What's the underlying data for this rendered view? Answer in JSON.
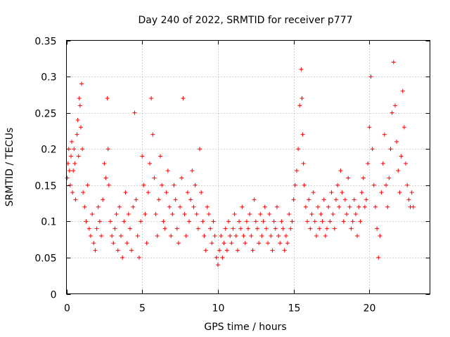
{
  "chart_data": {
    "type": "scatter",
    "title": "Day 240 of 2022, SRMTID for receiver p777",
    "xlabel": "GPS time / hours",
    "ylabel": "SRMTID / TECUs",
    "xlim": [
      0,
      24
    ],
    "ylim": [
      0,
      0.35
    ],
    "xticks": [
      0,
      5,
      10,
      15,
      20
    ],
    "xtick_labels": [
      "0",
      "5",
      "10",
      "15",
      "20"
    ],
    "yticks": [
      0,
      0.05,
      0.1,
      0.15,
      0.2,
      0.25,
      0.3,
      0.35
    ],
    "ytick_labels": [
      "0",
      "0.05",
      "0.1",
      "0.15",
      "0.2",
      "0.25",
      "0.3",
      "0.35"
    ],
    "grid": true,
    "marker": "plus",
    "color": "#ff0000",
    "series": [
      {
        "name": "SRMTID",
        "x": [
          0.05,
          0.1,
          0.15,
          0.2,
          0.25,
          0.3,
          0.35,
          0.4,
          0.45,
          0.5,
          0.55,
          0.6,
          0.7,
          0.75,
          0.8,
          0.85,
          0.9,
          0.95,
          1.0,
          1.05,
          1.1,
          1.2,
          1.3,
          1.4,
          1.5,
          1.6,
          1.7,
          1.8,
          1.9,
          2.0,
          2.1,
          2.2,
          2.3,
          2.4,
          2.5,
          2.6,
          2.7,
          2.75,
          2.8,
          2.9,
          3.0,
          3.1,
          3.2,
          3.3,
          3.4,
          3.5,
          3.6,
          3.7,
          3.8,
          3.9,
          4.0,
          4.1,
          4.2,
          4.3,
          4.4,
          4.5,
          4.6,
          4.7,
          4.8,
          4.9,
          5.0,
          5.1,
          5.2,
          5.3,
          5.4,
          5.5,
          5.6,
          5.7,
          5.8,
          5.9,
          6.0,
          6.1,
          6.2,
          6.3,
          6.4,
          6.5,
          6.6,
          6.7,
          6.8,
          6.9,
          7.0,
          7.1,
          7.2,
          7.3,
          7.4,
          7.5,
          7.6,
          7.7,
          7.8,
          7.9,
          8.0,
          8.1,
          8.2,
          8.3,
          8.4,
          8.5,
          8.6,
          8.7,
          8.8,
          8.9,
          9.0,
          9.1,
          9.2,
          9.3,
          9.4,
          9.5,
          9.6,
          9.7,
          9.8,
          9.9,
          10.0,
          10.1,
          10.2,
          10.3,
          10.4,
          10.5,
          10.6,
          10.7,
          10.8,
          10.9,
          11.0,
          11.1,
          11.2,
          11.3,
          11.4,
          11.5,
          11.6,
          11.7,
          11.8,
          11.9,
          12.0,
          12.1,
          12.2,
          12.3,
          12.4,
          12.5,
          12.6,
          12.7,
          12.8,
          12.9,
          13.0,
          13.1,
          13.2,
          13.3,
          13.4,
          13.5,
          13.6,
          13.7,
          13.8,
          13.9,
          14.0,
          14.1,
          14.2,
          14.3,
          14.4,
          14.5,
          14.6,
          14.7,
          14.8,
          14.9,
          15.0,
          15.1,
          15.2,
          15.3,
          15.4,
          15.5,
          15.55,
          15.6,
          15.65,
          15.7,
          15.8,
          15.9,
          16.0,
          16.1,
          16.2,
          16.3,
          16.4,
          16.5,
          16.6,
          16.7,
          16.8,
          16.9,
          17.0,
          17.1,
          17.2,
          17.3,
          17.4,
          17.5,
          17.6,
          17.7,
          17.8,
          17.9,
          18.0,
          18.1,
          18.2,
          18.3,
          18.4,
          18.5,
          18.6,
          18.7,
          18.8,
          18.9,
          19.0,
          19.1,
          19.2,
          19.3,
          19.4,
          19.5,
          19.6,
          19.7,
          19.8,
          19.9,
          20.0,
          20.1,
          20.2,
          20.3,
          20.4,
          20.5,
          20.6,
          20.7,
          20.8,
          20.9,
          21.0,
          21.1,
          21.2,
          21.3,
          21.4,
          21.5,
          21.6,
          21.7,
          21.8,
          21.9,
          22.0,
          22.1,
          22.2,
          22.3,
          22.4,
          22.5,
          22.6,
          22.7,
          22.8,
          22.9
        ],
        "y": [
          0.16,
          0.18,
          0.2,
          0.17,
          0.15,
          0.19,
          0.21,
          0.14,
          0.17,
          0.2,
          0.18,
          0.13,
          0.22,
          0.24,
          0.19,
          0.27,
          0.26,
          0.23,
          0.29,
          0.2,
          0.14,
          0.12,
          0.1,
          0.15,
          0.09,
          0.08,
          0.11,
          0.07,
          0.06,
          0.09,
          0.12,
          0.1,
          0.08,
          0.13,
          0.18,
          0.16,
          0.27,
          0.2,
          0.15,
          0.1,
          0.08,
          0.07,
          0.09,
          0.11,
          0.06,
          0.12,
          0.08,
          0.05,
          0.1,
          0.14,
          0.07,
          0.11,
          0.09,
          0.06,
          0.12,
          0.25,
          0.13,
          0.08,
          0.05,
          0.1,
          0.19,
          0.15,
          0.11,
          0.07,
          0.14,
          0.18,
          0.27,
          0.22,
          0.16,
          0.11,
          0.08,
          0.13,
          0.19,
          0.15,
          0.1,
          0.09,
          0.14,
          0.17,
          0.12,
          0.08,
          0.11,
          0.15,
          0.13,
          0.09,
          0.07,
          0.12,
          0.16,
          0.27,
          0.11,
          0.08,
          0.14,
          0.1,
          0.13,
          0.17,
          0.12,
          0.15,
          0.11,
          0.09,
          0.2,
          0.14,
          0.1,
          0.08,
          0.06,
          0.12,
          0.11,
          0.09,
          0.07,
          0.1,
          0.08,
          0.05,
          0.04,
          0.06,
          0.08,
          0.05,
          0.07,
          0.09,
          0.06,
          0.1,
          0.08,
          0.07,
          0.09,
          0.11,
          0.08,
          0.06,
          0.1,
          0.09,
          0.12,
          0.08,
          0.07,
          0.1,
          0.09,
          0.11,
          0.08,
          0.06,
          0.13,
          0.1,
          0.09,
          0.07,
          0.11,
          0.08,
          0.1,
          0.12,
          0.09,
          0.07,
          0.11,
          0.08,
          0.06,
          0.1,
          0.09,
          0.12,
          0.08,
          0.07,
          0.1,
          0.09,
          0.06,
          0.08,
          0.07,
          0.11,
          0.09,
          0.1,
          0.13,
          0.15,
          0.17,
          0.2,
          0.26,
          0.31,
          0.27,
          0.22,
          0.18,
          0.15,
          0.12,
          0.1,
          0.13,
          0.09,
          0.11,
          0.14,
          0.1,
          0.08,
          0.12,
          0.09,
          0.11,
          0.1,
          0.13,
          0.08,
          0.09,
          0.12,
          0.1,
          0.14,
          0.11,
          0.09,
          0.13,
          0.15,
          0.12,
          0.17,
          0.14,
          0.1,
          0.13,
          0.11,
          0.16,
          0.12,
          0.09,
          0.1,
          0.13,
          0.11,
          0.08,
          0.12,
          0.1,
          0.14,
          0.16,
          0.12,
          0.13,
          0.18,
          0.23,
          0.3,
          0.2,
          0.15,
          0.12,
          0.09,
          0.05,
          0.08,
          0.14,
          0.18,
          0.22,
          0.15,
          0.12,
          0.16,
          0.2,
          0.25,
          0.32,
          0.26,
          0.21,
          0.17,
          0.14,
          0.19,
          0.28,
          0.23,
          0.18,
          0.15,
          0.13,
          0.12,
          0.14,
          0.12
        ]
      }
    ]
  }
}
